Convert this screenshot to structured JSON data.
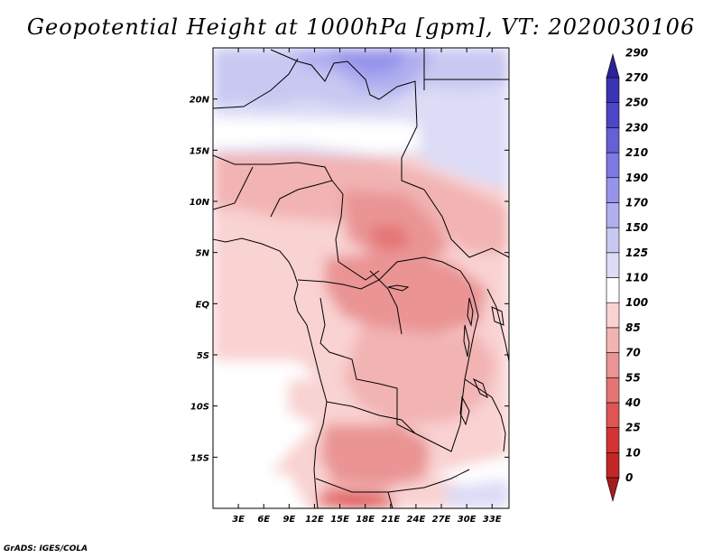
{
  "title": "Geopotential Height at 1000hPa [gpm], VT: 2020030106",
  "footer": "GrADS: IGES/COLA",
  "map": {
    "region": "Central Africa",
    "variable": "Geopotential Height",
    "level": "1000hPa",
    "units": "gpm",
    "valid_time": "2020030106",
    "lon_range": [
      0,
      35
    ],
    "lat_range": [
      -20,
      25
    ],
    "lat_ticks": [
      {
        "value": 20,
        "label": "20N"
      },
      {
        "value": 15,
        "label": "15N"
      },
      {
        "value": 10,
        "label": "10N"
      },
      {
        "value": 5,
        "label": "5N"
      },
      {
        "value": 0,
        "label": "EQ"
      },
      {
        "value": -5,
        "label": "5S"
      },
      {
        "value": -10,
        "label": "10S"
      },
      {
        "value": -15,
        "label": "15S"
      }
    ],
    "lon_ticks": [
      {
        "value": 3,
        "label": "3E"
      },
      {
        "value": 6,
        "label": "6E"
      },
      {
        "value": 9,
        "label": "9E"
      },
      {
        "value": 12,
        "label": "12E"
      },
      {
        "value": 15,
        "label": "15E"
      },
      {
        "value": 18,
        "label": "18E"
      },
      {
        "value": 21,
        "label": "21E"
      },
      {
        "value": 24,
        "label": "24E"
      },
      {
        "value": 27,
        "label": "27E"
      },
      {
        "value": 30,
        "label": "30E"
      },
      {
        "value": 33,
        "label": "33E"
      }
    ]
  },
  "colorbar": {
    "levels": [
      "0",
      "10",
      "25",
      "40",
      "55",
      "70",
      "85",
      "100",
      "110",
      "125",
      "150",
      "170",
      "190",
      "210",
      "230",
      "250",
      "270",
      "290"
    ],
    "colors": [
      "#a51c1c",
      "#c22626",
      "#d43333",
      "#df5555",
      "#e47575",
      "#ea9494",
      "#f2b3b3",
      "#f9d2d2",
      "#ffffff",
      "#dcdcf6",
      "#c8c8f2",
      "#b0aff0",
      "#9694ea",
      "#7d78e2",
      "#6560d6",
      "#4e46c8",
      "#3a33b4",
      "#2a2498"
    ]
  }
}
